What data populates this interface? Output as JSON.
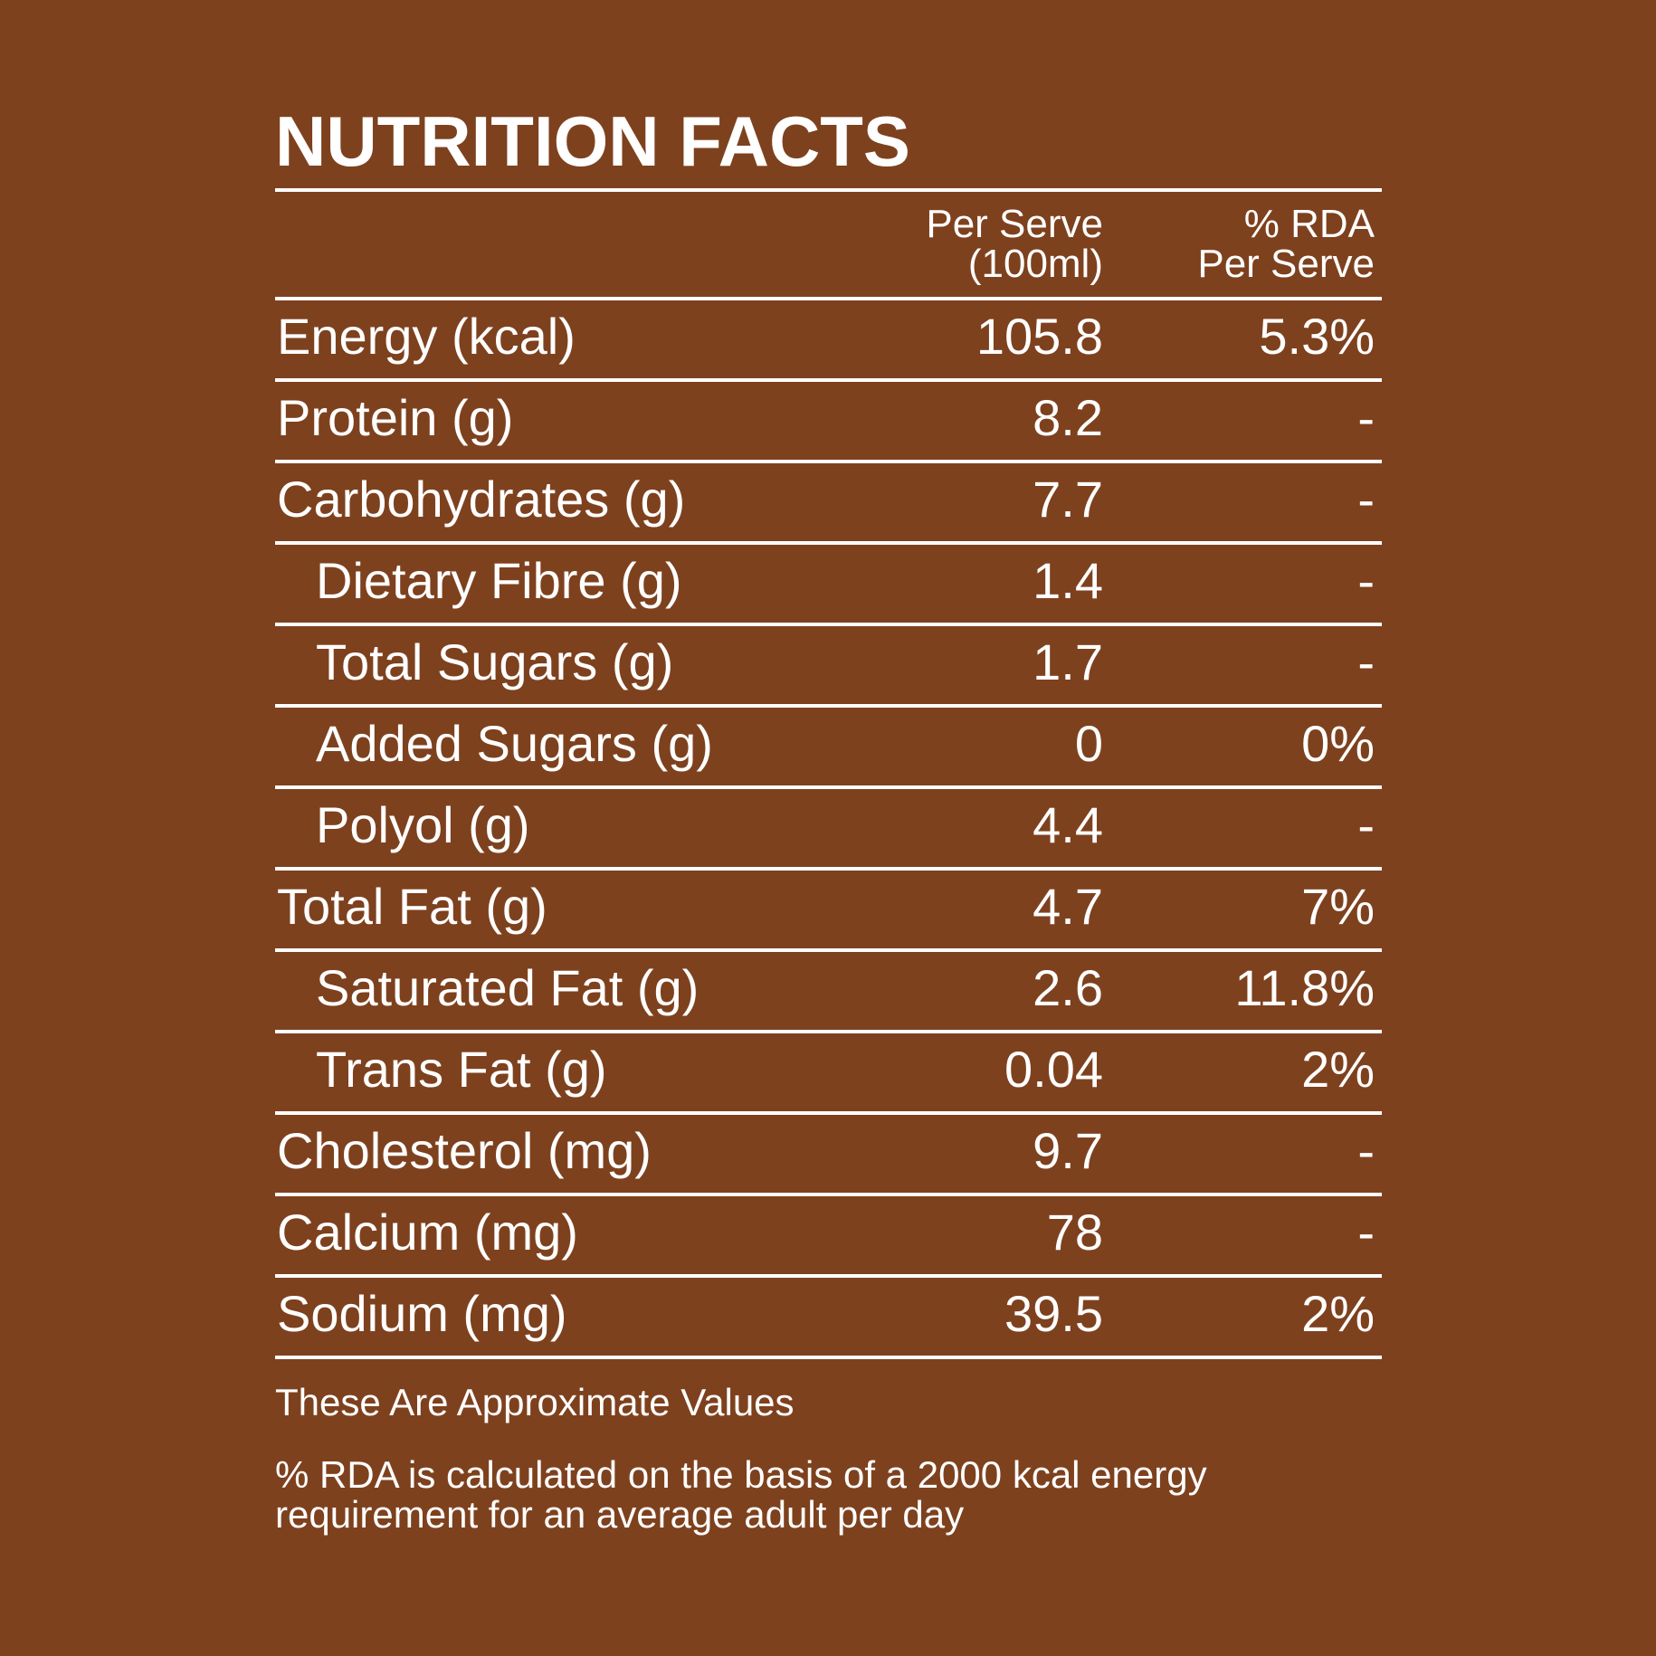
{
  "title": "NUTRITION FACTS",
  "header": {
    "per_serve": [
      "Per Serve",
      "(100ml)"
    ],
    "rda": [
      "% RDA",
      "Per Serve"
    ]
  },
  "rows": [
    {
      "label": "Energy (kcal)",
      "value": "105.8",
      "rda": "5.3%",
      "sub": false
    },
    {
      "label": "Protein (g)",
      "value": "8.2",
      "rda": "-",
      "sub": false
    },
    {
      "label": "Carbohydrates (g)",
      "value": "7.7",
      "rda": "-",
      "sub": false
    },
    {
      "label": "Dietary Fibre (g)",
      "value": "1.4",
      "rda": "-",
      "sub": true
    },
    {
      "label": "Total Sugars (g)",
      "value": "1.7",
      "rda": "-",
      "sub": true
    },
    {
      "label": "Added Sugars (g)",
      "value": "0",
      "rda": "0%",
      "sub": true
    },
    {
      "label": "Polyol (g)",
      "value": "4.4",
      "rda": "-",
      "sub": true
    },
    {
      "label": "Total Fat (g)",
      "value": "4.7",
      "rda": "7%",
      "sub": false
    },
    {
      "label": "Saturated Fat (g)",
      "value": "2.6",
      "rda": "11.8%",
      "sub": true
    },
    {
      "label": "Trans Fat (g)",
      "value": "0.04",
      "rda": "2%",
      "sub": true
    },
    {
      "label": "Cholesterol (mg)",
      "value": "9.7",
      "rda": "-",
      "sub": false
    },
    {
      "label": "Calcium (mg)",
      "value": "78",
      "rda": "-",
      "sub": false
    },
    {
      "label": "Sodium (mg)",
      "value": "39.5",
      "rda": "2%",
      "sub": false
    }
  ],
  "notes": {
    "approx": "These Are Approximate Values",
    "rda_basis": [
      "% RDA is calculated on the basis of a 2000 kcal energy",
      "requirement for an average adult per day"
    ]
  },
  "colors": {
    "background": "#7e411e",
    "text": "#ffffff"
  }
}
